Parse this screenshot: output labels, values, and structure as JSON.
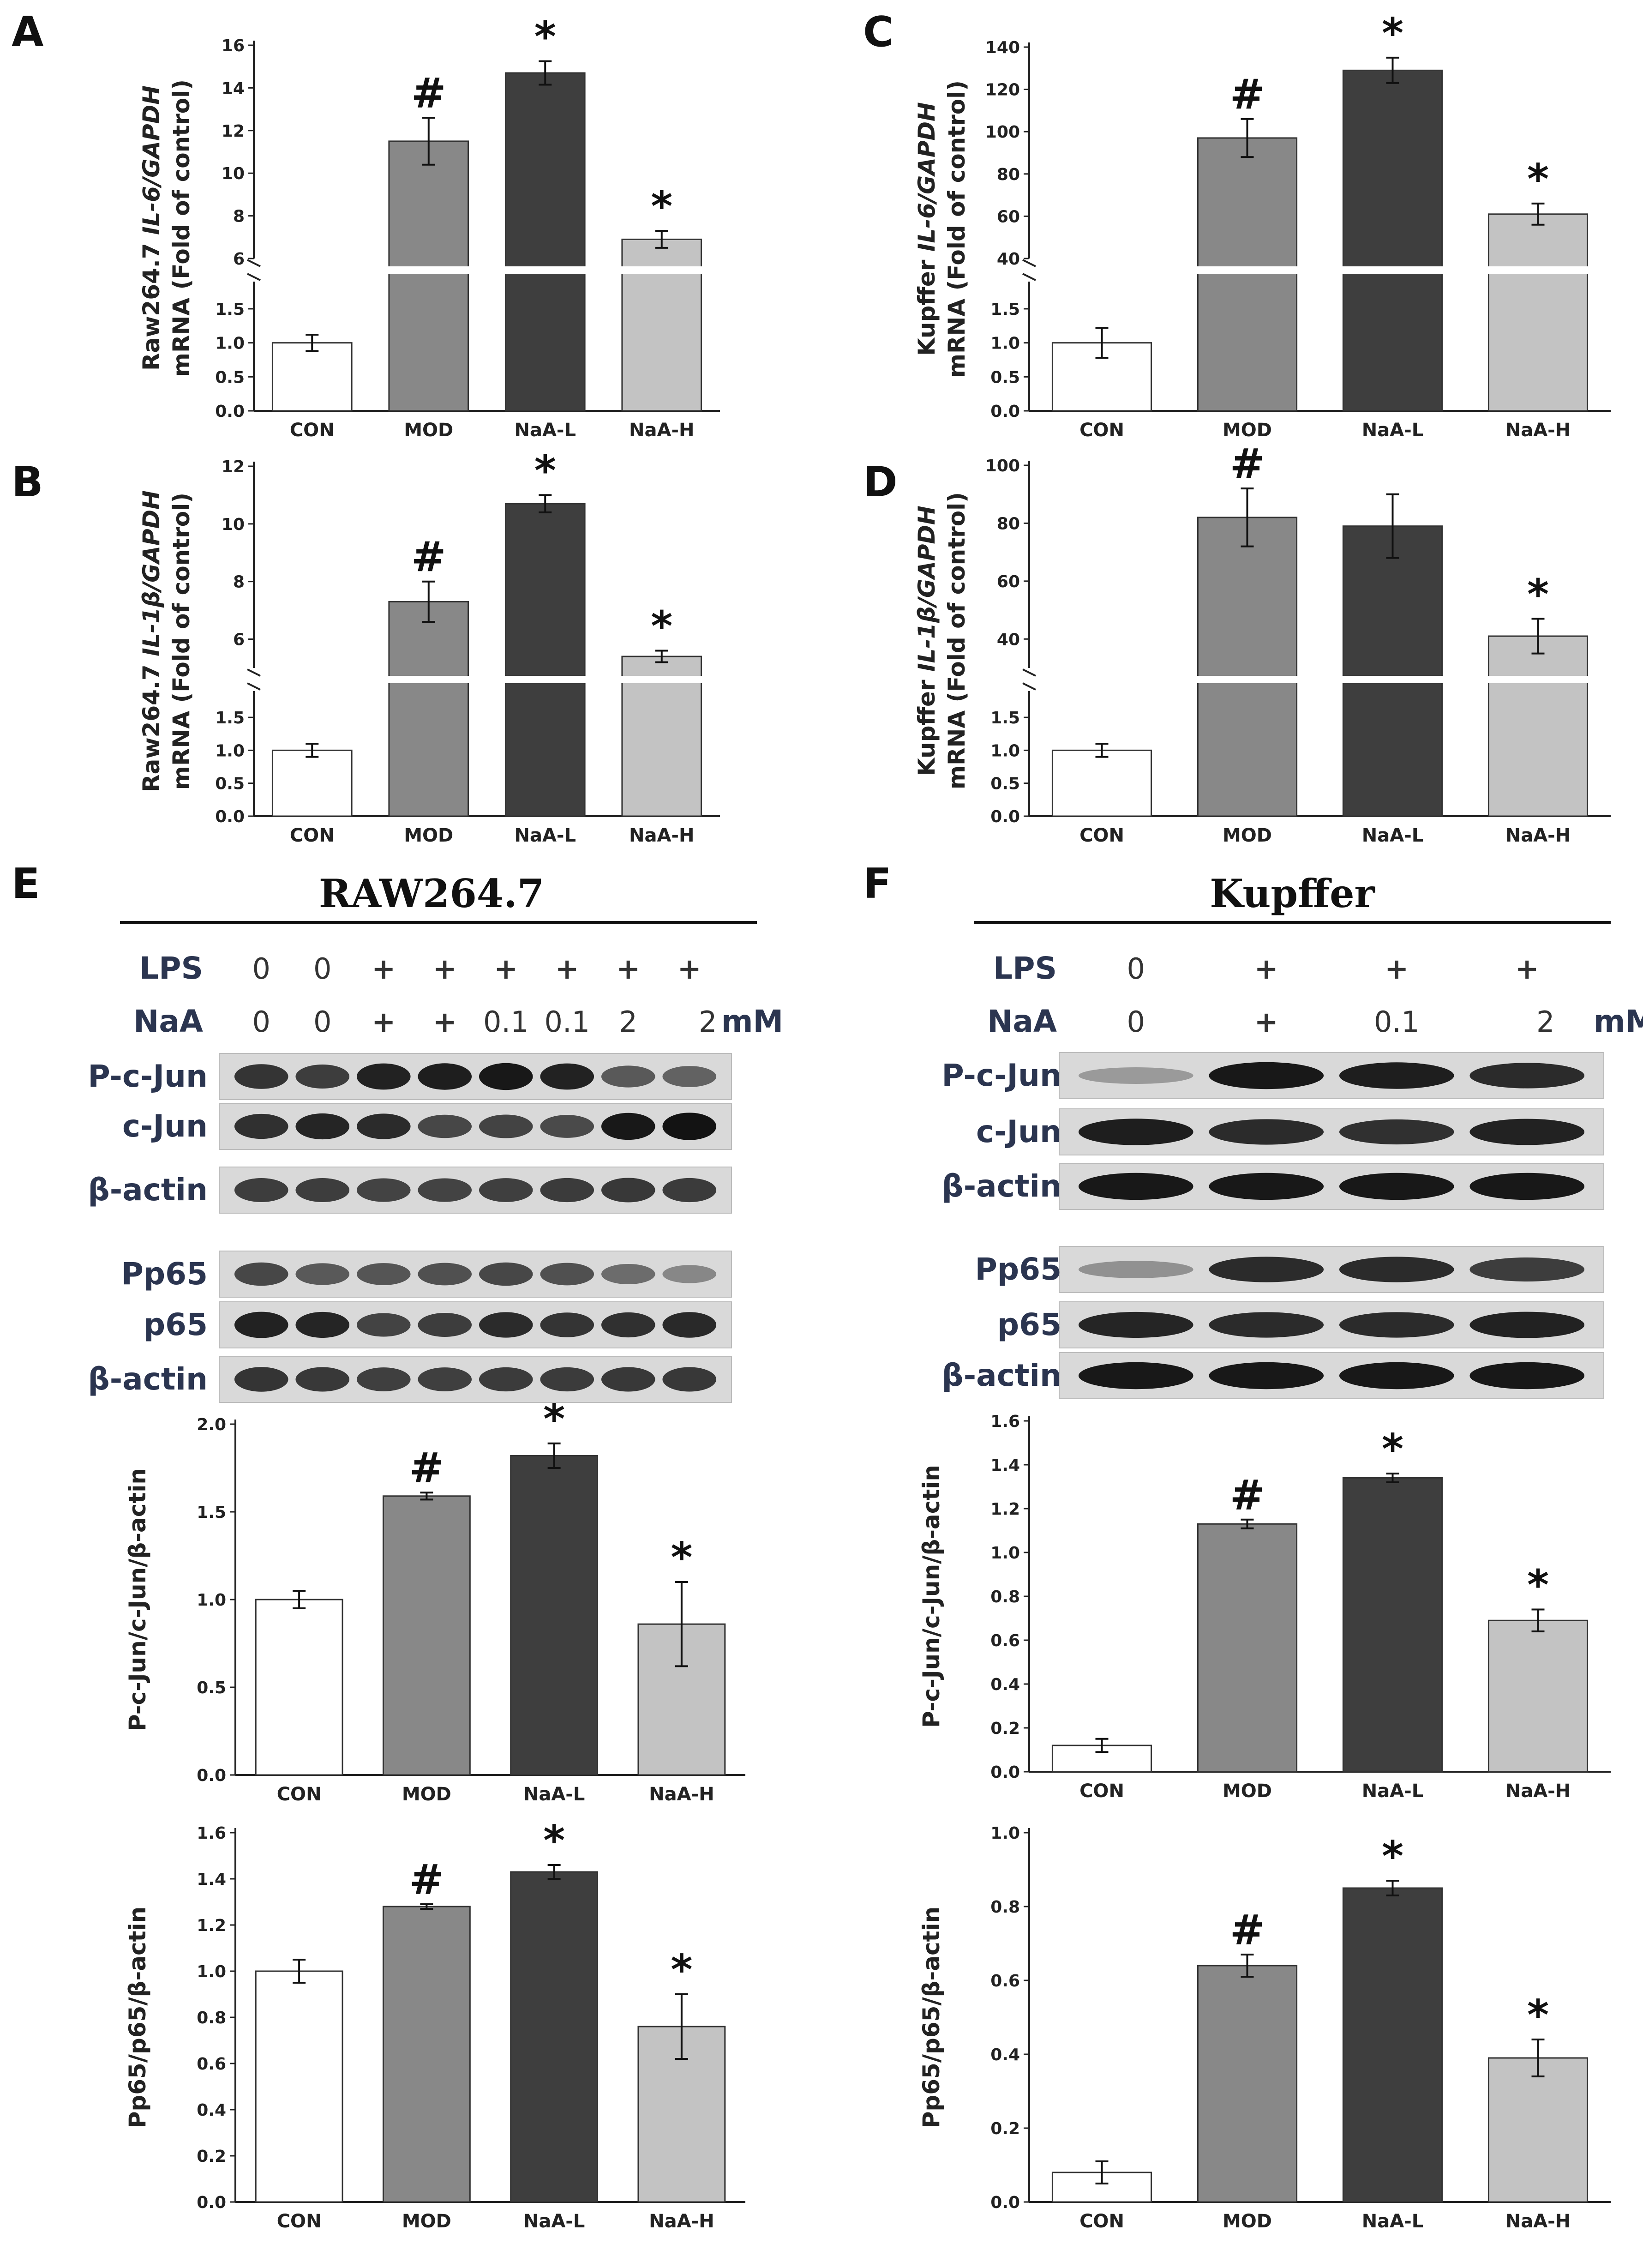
{
  "colors": {
    "CON": "#ffffff",
    "MOD": "#888888",
    "NaA-L": "#3e3e3e",
    "NaA-H": "#c3c3c3"
  },
  "panel_labels": [
    "A",
    "B",
    "C",
    "D",
    "E",
    "F"
  ],
  "chart_data": [
    {
      "panel": "A",
      "type": "bar",
      "ylabel_pre": "Raw264.7 ",
      "ylabel_gene": "IL-6/GAPDH",
      "ylabel_line2": "mRNA (Fold of control)",
      "categories": [
        "CON",
        "MOD",
        "NaA-L",
        "NaA-H"
      ],
      "values": [
        1.0,
        11.5,
        14.7,
        6.9
      ],
      "errors": [
        0.12,
        1.1,
        0.55,
        0.4
      ],
      "marks": [
        "",
        "#",
        "*",
        "*"
      ],
      "broken_axis": true,
      "lower_ylim": [
        0,
        1.9
      ],
      "lower_ticks": [
        "0.0",
        "0.5",
        "1.0",
        "1.5"
      ],
      "upper_ylim": [
        6,
        16
      ],
      "upper_ticks": [
        "6",
        "8",
        "10",
        "12",
        "14",
        "16"
      ]
    },
    {
      "panel": "B",
      "type": "bar",
      "ylabel_pre": "Raw264.7 ",
      "ylabel_gene": "IL-1β/GAPDH",
      "ylabel_line2": "mRNA (Fold of control)",
      "categories": [
        "CON",
        "MOD",
        "NaA-L",
        "NaA-H"
      ],
      "values": [
        1.0,
        7.3,
        10.7,
        5.4
      ],
      "errors": [
        0.1,
        0.7,
        0.3,
        0.2
      ],
      "marks": [
        "",
        "#",
        "*",
        "*"
      ],
      "broken_axis": true,
      "lower_ylim": [
        0,
        1.9
      ],
      "lower_ticks": [
        "0.0",
        "0.5",
        "1.0",
        "1.5"
      ],
      "upper_ylim": [
        5,
        12
      ],
      "upper_ticks": [
        "6",
        "8",
        "10",
        "12"
      ]
    },
    {
      "panel": "C",
      "type": "bar",
      "ylabel_pre": "Kupffer ",
      "ylabel_gene": "IL-6/GAPDH",
      "ylabel_line2": "mRNA (Fold of control)",
      "categories": [
        "CON",
        "MOD",
        "NaA-L",
        "NaA-H"
      ],
      "values": [
        1.0,
        97,
        129,
        61
      ],
      "errors": [
        0.22,
        9,
        6,
        5
      ],
      "marks": [
        "",
        "#",
        "*",
        "*"
      ],
      "broken_axis": true,
      "lower_ylim": [
        0,
        1.9
      ],
      "lower_ticks": [
        "0.0",
        "0.5",
        "1.0",
        "1.5"
      ],
      "upper_ylim": [
        40,
        140
      ],
      "upper_ticks": [
        "40",
        "60",
        "80",
        "100",
        "120",
        "140"
      ]
    },
    {
      "panel": "D",
      "type": "bar",
      "ylabel_pre": "Kupffer ",
      "ylabel_gene": "IL-1β/GAPDH",
      "ylabel_line2": "mRNA (Fold of control)",
      "categories": [
        "CON",
        "MOD",
        "NaA-L",
        "NaA-H"
      ],
      "values": [
        1.0,
        82,
        79,
        41
      ],
      "errors": [
        0.1,
        10,
        11,
        6
      ],
      "marks": [
        "",
        "#",
        "",
        "*"
      ],
      "broken_axis": true,
      "lower_ylim": [
        0,
        1.9
      ],
      "lower_ticks": [
        "0.0",
        "0.5",
        "1.0",
        "1.5"
      ],
      "upper_ylim": [
        30,
        100
      ],
      "upper_ticks": [
        "40",
        "60",
        "80",
        "100"
      ]
    },
    {
      "panel": "E1",
      "type": "bar",
      "ylabel": "P-c-Jun/c-Jun/β-actin",
      "categories": [
        "CON",
        "MOD",
        "NaA-L",
        "NaA-H"
      ],
      "values": [
        1.0,
        1.59,
        1.82,
        0.86
      ],
      "errors": [
        0.05,
        0.02,
        0.07,
        0.24
      ],
      "marks": [
        "",
        "#",
        "*",
        "*"
      ],
      "ylim": [
        0,
        2.0
      ],
      "ticks": [
        "0.0",
        "0.5",
        "1.0",
        "1.5",
        "2.0"
      ]
    },
    {
      "panel": "E2",
      "type": "bar",
      "ylabel": "Pp65/p65/β-actin",
      "categories": [
        "CON",
        "MOD",
        "NaA-L",
        "NaA-H"
      ],
      "values": [
        1.0,
        1.28,
        1.43,
        0.76
      ],
      "errors": [
        0.05,
        0.01,
        0.03,
        0.14
      ],
      "marks": [
        "",
        "#",
        "*",
        "*"
      ],
      "ylim": [
        0,
        1.6
      ],
      "ticks": [
        "0.0",
        "0.2",
        "0.4",
        "0.6",
        "0.8",
        "1.0",
        "1.2",
        "1.4",
        "1.6"
      ]
    },
    {
      "panel": "F1",
      "type": "bar",
      "ylabel": "P-c-Jun/c-Jun/β-actin",
      "categories": [
        "CON",
        "MOD",
        "NaA-L",
        "NaA-H"
      ],
      "values": [
        0.12,
        1.13,
        1.34,
        0.69
      ],
      "errors": [
        0.03,
        0.02,
        0.02,
        0.05
      ],
      "marks": [
        "",
        "#",
        "*",
        "*"
      ],
      "ylim": [
        0,
        1.6
      ],
      "ticks": [
        "0.0",
        "0.2",
        "0.4",
        "0.6",
        "0.8",
        "1.0",
        "1.2",
        "1.4",
        "1.6"
      ]
    },
    {
      "panel": "F2",
      "type": "bar",
      "ylabel": "Pp65/p65/β-actin",
      "categories": [
        "CON",
        "MOD",
        "NaA-L",
        "NaA-H"
      ],
      "values": [
        0.08,
        0.64,
        0.85,
        0.39
      ],
      "errors": [
        0.03,
        0.03,
        0.02,
        0.05
      ],
      "marks": [
        "",
        "#",
        "*",
        "*"
      ],
      "ylim": [
        0,
        1.0
      ],
      "ticks": [
        "0.0",
        "0.2",
        "0.4",
        "0.6",
        "0.8",
        "1.0"
      ]
    }
  ],
  "blots": {
    "E": {
      "title": "RAW264.7",
      "lps_label": "LPS",
      "naa_label": "NaA",
      "unit": "mM",
      "lps": [
        "0",
        "0",
        "+",
        "+",
        "+",
        "+",
        "+",
        "+"
      ],
      "naa": [
        "0",
        "0",
        "+",
        "+",
        "0.1",
        "0.1",
        "2",
        "2"
      ],
      "bands1": [
        "P-c-Jun",
        "c-Jun",
        "β-actin"
      ],
      "bands2": [
        "Pp65",
        "p65",
        "β-actin"
      ],
      "intensity": [
        [
          0.8,
          0.75,
          0.9,
          0.92,
          0.95,
          0.9,
          0.6,
          0.55
        ],
        [
          0.82,
          0.88,
          0.85,
          0.7,
          0.72,
          0.68,
          0.95,
          0.98
        ],
        [
          0.75,
          0.75,
          0.72,
          0.72,
          0.74,
          0.76,
          0.78,
          0.76
        ],
        [
          0.7,
          0.6,
          0.62,
          0.65,
          0.7,
          0.65,
          0.5,
          0.35
        ],
        [
          0.9,
          0.88,
          0.72,
          0.75,
          0.85,
          0.8,
          0.82,
          0.86
        ],
        [
          0.8,
          0.78,
          0.74,
          0.74,
          0.76,
          0.76,
          0.78,
          0.78
        ]
      ]
    },
    "F": {
      "title": "Kupffer",
      "lps_label": "LPS",
      "naa_label": "NaA",
      "unit": "mM",
      "lps": [
        "0",
        "+",
        "+",
        "+"
      ],
      "naa": [
        "0",
        "+",
        "0.1",
        "2"
      ],
      "bands1": [
        "P-c-Jun",
        "c-Jun",
        "β-actin"
      ],
      "bands2": [
        "Pp65",
        "p65",
        "β-actin"
      ],
      "intensity": [
        [
          0.25,
          0.95,
          0.92,
          0.85
        ],
        [
          0.92,
          0.85,
          0.82,
          0.9
        ],
        [
          0.95,
          0.95,
          0.95,
          0.95
        ],
        [
          0.3,
          0.85,
          0.85,
          0.75
        ],
        [
          0.88,
          0.85,
          0.85,
          0.9
        ],
        [
          0.95,
          0.95,
          0.95,
          0.95
        ]
      ]
    }
  }
}
